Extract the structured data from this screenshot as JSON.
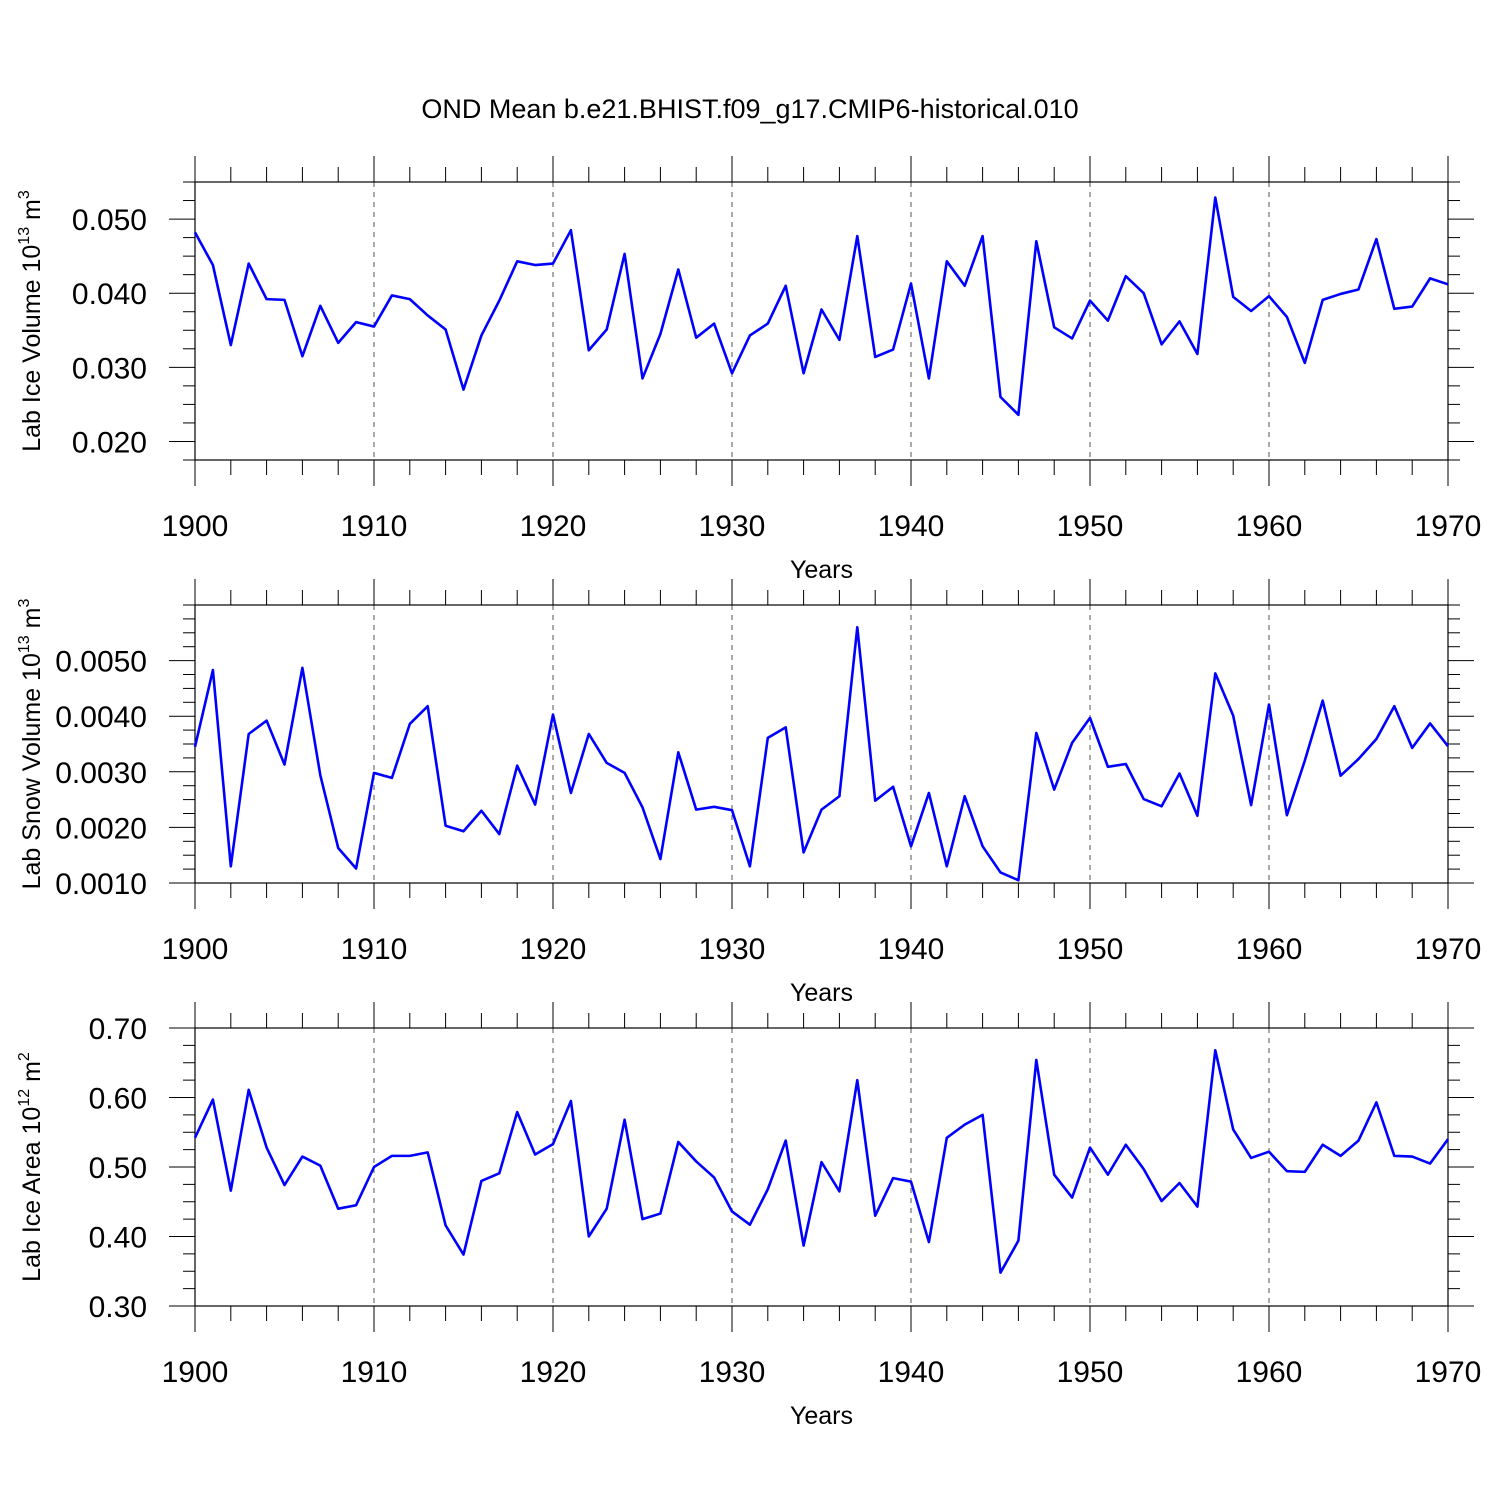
{
  "title": "OND Mean b.e21.BHIST.f09_g17.CMIP6-historical.010",
  "colors": {
    "line": "#0000ff",
    "axis": "#000000",
    "grid": "#555555"
  },
  "chart_data": [
    {
      "type": "line",
      "ylabel": "Lab Ice Volume 10",
      "ylabel_exp": "13",
      "ylabel_unit": " m",
      "ylabel_unit_exp": "3",
      "xlabel": "Years",
      "xlim": [
        1900,
        1970
      ],
      "ylim": [
        0.0175,
        0.055
      ],
      "yticks": [
        0.02,
        0.03,
        0.04,
        0.05
      ],
      "ytick_labels": [
        "0.020",
        "0.030",
        "0.040",
        "0.050"
      ],
      "ymin_step": 0.0025,
      "xticks": [
        1900,
        1910,
        1920,
        1930,
        1940,
        1950,
        1960,
        1970
      ],
      "xtick_labels": [
        "1900",
        "1910",
        "1920",
        "1930",
        "1940",
        "1950",
        "1960",
        "1970"
      ],
      "grid_x": true,
      "series": [
        {
          "name": "Lab Ice Volume",
          "x_start": 1900,
          "values": [
            0.0482,
            0.0438,
            0.033,
            0.044,
            0.0392,
            0.0391,
            0.0315,
            0.0383,
            0.0333,
            0.0361,
            0.0355,
            0.0397,
            0.0392,
            0.037,
            0.0351,
            0.027,
            0.0343,
            0.039,
            0.0443,
            0.0438,
            0.044,
            0.0485,
            0.0323,
            0.0351,
            0.0453,
            0.0285,
            0.0345,
            0.0432,
            0.034,
            0.0359,
            0.0292,
            0.0343,
            0.0359,
            0.041,
            0.0292,
            0.0378,
            0.0337,
            0.0477,
            0.0314,
            0.0324,
            0.0413,
            0.0285,
            0.0443,
            0.041,
            0.0477,
            0.026,
            0.0236,
            0.047,
            0.0354,
            0.0339,
            0.039,
            0.0363,
            0.0423,
            0.04,
            0.0331,
            0.0362,
            0.0318,
            0.0529,
            0.0395,
            0.0376,
            0.0396,
            0.0368,
            0.0306,
            0.0391,
            0.0399,
            0.0405,
            0.0473,
            0.0379,
            0.0382,
            0.042,
            0.0412
          ]
        }
      ]
    },
    {
      "type": "line",
      "ylabel": "Lab Snow Volume 10",
      "ylabel_exp": "13",
      "ylabel_unit": " m",
      "ylabel_unit_exp": "3",
      "xlabel": "Years",
      "xlim": [
        1900,
        1970
      ],
      "ylim": [
        0.001,
        0.006
      ],
      "yticks": [
        0.001,
        0.002,
        0.003,
        0.004,
        0.005
      ],
      "ytick_labels": [
        "0.0010",
        "0.0020",
        "0.0030",
        "0.0040",
        "0.0050"
      ],
      "ymin_step": 0.00025,
      "xticks": [
        1900,
        1910,
        1920,
        1930,
        1940,
        1950,
        1960,
        1970
      ],
      "xtick_labels": [
        "1900",
        "1910",
        "1920",
        "1930",
        "1940",
        "1950",
        "1960",
        "1970"
      ],
      "grid_x": true,
      "series": [
        {
          "name": "Lab Snow Volume",
          "x_start": 1900,
          "values": [
            0.00345,
            0.00483,
            0.0013,
            0.00368,
            0.00392,
            0.00313,
            0.00487,
            0.00294,
            0.00163,
            0.00126,
            0.00298,
            0.00289,
            0.00386,
            0.00418,
            0.00203,
            0.00193,
            0.0023,
            0.00188,
            0.00311,
            0.00241,
            0.00403,
            0.00262,
            0.00368,
            0.00316,
            0.00298,
            0.00236,
            0.00143,
            0.00335,
            0.00232,
            0.00237,
            0.00231,
            0.0013,
            0.00361,
            0.0038,
            0.00155,
            0.00232,
            0.00256,
            0.0056,
            0.00248,
            0.00273,
            0.00166,
            0.00262,
            0.0013,
            0.00256,
            0.00166,
            0.00119,
            0.00105,
            0.0037,
            0.00268,
            0.00352,
            0.00397,
            0.00309,
            0.00314,
            0.00251,
            0.00238,
            0.00297,
            0.00221,
            0.00477,
            0.00401,
            0.0024,
            0.00421,
            0.00222,
            0.0032,
            0.00428,
            0.00293,
            0.00323,
            0.00359,
            0.00418,
            0.00343,
            0.00387,
            0.00346
          ]
        }
      ]
    },
    {
      "type": "line",
      "ylabel": "Lab Ice Area 10",
      "ylabel_exp": "12",
      "ylabel_unit": " m",
      "ylabel_unit_exp": "2",
      "xlabel": "Years",
      "xlim": [
        1900,
        1970
      ],
      "ylim": [
        0.3,
        0.7
      ],
      "yticks": [
        0.3,
        0.4,
        0.5,
        0.6,
        0.7
      ],
      "ytick_labels": [
        "0.30",
        "0.40",
        "0.50",
        "0.60",
        "0.70"
      ],
      "ymin_step": 0.025,
      "xticks": [
        1900,
        1910,
        1920,
        1930,
        1940,
        1950,
        1960,
        1970
      ],
      "xtick_labels": [
        "1900",
        "1910",
        "1920",
        "1930",
        "1940",
        "1950",
        "1960",
        "1970"
      ],
      "grid_x": true,
      "series": [
        {
          "name": "Lab Ice Area",
          "x_start": 1900,
          "values": [
            0.542,
            0.597,
            0.466,
            0.611,
            0.528,
            0.474,
            0.515,
            0.502,
            0.44,
            0.445,
            0.5,
            0.516,
            0.516,
            0.521,
            0.416,
            0.374,
            0.48,
            0.491,
            0.579,
            0.518,
            0.533,
            0.595,
            0.4,
            0.44,
            0.568,
            0.425,
            0.433,
            0.536,
            0.508,
            0.485,
            0.436,
            0.417,
            0.468,
            0.538,
            0.387,
            0.507,
            0.465,
            0.625,
            0.43,
            0.484,
            0.479,
            0.392,
            0.542,
            0.561,
            0.575,
            0.348,
            0.394,
            0.654,
            0.489,
            0.456,
            0.528,
            0.489,
            0.532,
            0.497,
            0.451,
            0.477,
            0.443,
            0.668,
            0.554,
            0.513,
            0.522,
            0.494,
            0.493,
            0.532,
            0.516,
            0.538,
            0.593,
            0.516,
            0.515,
            0.505,
            0.54
          ]
        }
      ]
    }
  ]
}
